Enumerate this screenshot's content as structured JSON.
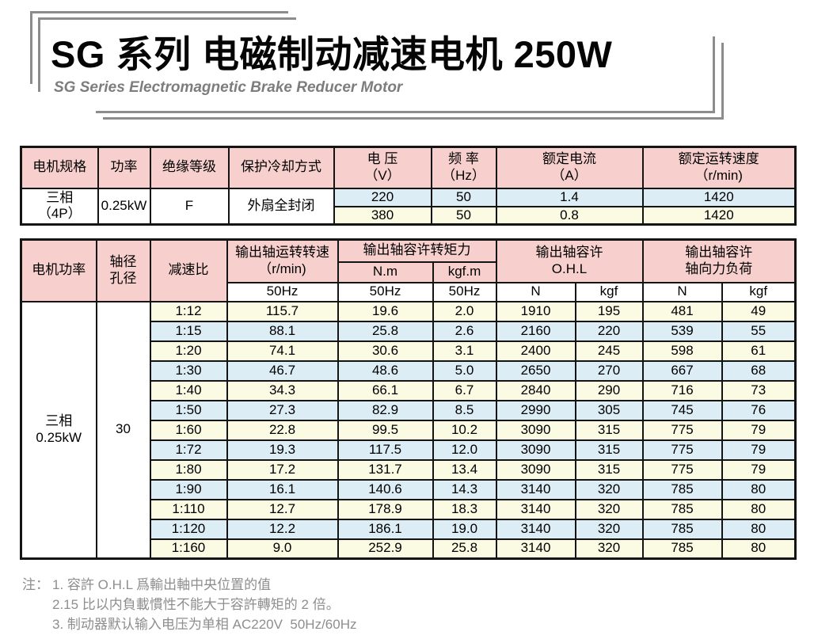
{
  "header": {
    "title": "SG 系列 电磁制动减速电机 250W",
    "subtitle": "SG Series Electromagnetic Brake Reducer Motor"
  },
  "spec_table": {
    "col_motor_spec": "电机规格",
    "col_power": "功率",
    "col_insulation": "绝缘等级",
    "col_protection": "保护冷却方式",
    "col_voltage": "电 压\n（V）",
    "col_frequency": "频 率\n（Hz）",
    "col_current": "额定电流\n（A）",
    "col_speed": "额定运转速度\n（r/min)",
    "motor_spec": "三相\n（4P）",
    "power": "0.25kW",
    "insulation": "F",
    "protection": "外扇全封闭",
    "rows": [
      {
        "voltage": "220",
        "frequency": "50",
        "current": "1.4",
        "speed": "1420"
      },
      {
        "voltage": "380",
        "frequency": "50",
        "current": "0.8",
        "speed": "1420"
      }
    ]
  },
  "performance_table": {
    "col_motor_power": "电机功率",
    "col_shaft_bore": "轴径\n孔径",
    "col_ratio": "减速比",
    "col_output_speed": "输出轴运转转速\n（r/min)",
    "col_output_speed_sub": "50Hz",
    "col_torque_group": "输出轴容许转矩力",
    "col_torque_nm": "N.m",
    "col_torque_kgfm": "kgf.m",
    "col_torque_nm_sub": "50Hz",
    "col_torque_kgfm_sub": "50Hz",
    "col_ohl_group": "输出轴容许\nO.H.L",
    "col_ohl_n": "N",
    "col_ohl_kgf": "kgf",
    "col_axial_group": "输出轴容许\n轴向力负荷",
    "col_axial_n": "N",
    "col_axial_kgf": "kgf",
    "motor_power": "三相\n0.25kW",
    "shaft_bore": "30",
    "col_keys": [
      "ratio",
      "output-speed",
      "torque-nm",
      "torque-kgfm",
      "ohl-n",
      "ohl-kgf",
      "axial-n",
      "axial-kgf"
    ],
    "rows": [
      [
        "1:12",
        "115.7",
        "19.6",
        "2.0",
        "1910",
        "195",
        "481",
        "49"
      ],
      [
        "1:15",
        "88.1",
        "25.8",
        "2.6",
        "2160",
        "220",
        "539",
        "55"
      ],
      [
        "1:20",
        "74.1",
        "30.6",
        "3.1",
        "2400",
        "245",
        "598",
        "61"
      ],
      [
        "1:30",
        "46.7",
        "48.6",
        "5.0",
        "2650",
        "270",
        "667",
        "68"
      ],
      [
        "1:40",
        "34.3",
        "66.1",
        "6.7",
        "2840",
        "290",
        "716",
        "73"
      ],
      [
        "1:50",
        "27.3",
        "82.9",
        "8.5",
        "2990",
        "305",
        "745",
        "76"
      ],
      [
        "1:60",
        "22.8",
        "99.5",
        "10.2",
        "3090",
        "315",
        "775",
        "79"
      ],
      [
        "1:72",
        "19.3",
        "117.5",
        "12.0",
        "3090",
        "315",
        "775",
        "79"
      ],
      [
        "1:80",
        "17.2",
        "131.7",
        "13.4",
        "3090",
        "315",
        "775",
        "79"
      ],
      [
        "1:90",
        "16.1",
        "140.6",
        "14.3",
        "3140",
        "320",
        "785",
        "80"
      ],
      [
        "1:110",
        "12.7",
        "178.9",
        "18.3",
        "3140",
        "320",
        "785",
        "80"
      ],
      [
        "1:120",
        "12.2",
        "186.1",
        "19.0",
        "3140",
        "320",
        "785",
        "80"
      ],
      [
        "1:160",
        "9.0",
        "252.9",
        "25.8",
        "3140",
        "320",
        "785",
        "80"
      ]
    ]
  },
  "notes": {
    "label": "注：",
    "items": [
      "1. 容許 O.H.L 爲輸出軸中央位置的值",
      "2.15 比以内負載慣性不能大于容許轉矩的 2 倍。",
      "3. 制动器默认输入电压为单相 AC220V  50Hz/60Hz"
    ]
  },
  "colors": {
    "header_pink": "#f7d0ce",
    "row_blue": "#dcedf5",
    "row_cream": "#fbfae3",
    "frame_gray": "#8c8c8c",
    "note_gray": "#8e8e8e",
    "border_black": "#141414"
  }
}
